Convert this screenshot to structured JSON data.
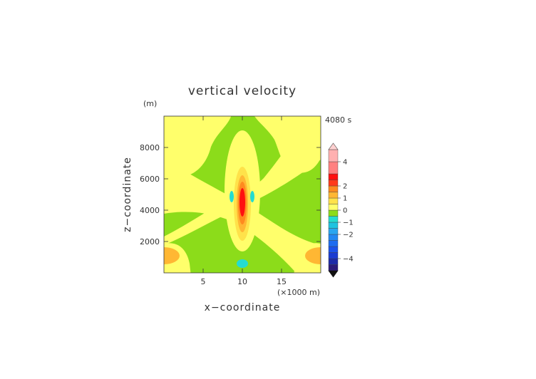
{
  "chart_data": {
    "type": "heatmap",
    "title": "vertical velocity",
    "time_label": "4080 s",
    "xlabel": "x−coordinate",
    "ylabel": "z−coordinate",
    "x_unit_label": "(×1000 m)",
    "y_unit_label": "(m)",
    "xlim": [
      0,
      20
    ],
    "ylim": [
      0,
      10000
    ],
    "x_ticks": [
      5,
      10,
      15
    ],
    "x_tick_labels": [
      "5",
      "10",
      "15"
    ],
    "y_ticks": [
      2000,
      4000,
      6000,
      8000
    ],
    "y_tick_labels": [
      "2000",
      "4000",
      "6000",
      "8000"
    ],
    "colorbar": {
      "levels": [
        -5,
        -4.5,
        -4,
        -3.5,
        -3,
        -2.5,
        -2,
        -1.5,
        -1,
        -0.5,
        0,
        0.5,
        1,
        1.5,
        2,
        2.5,
        3,
        4,
        5
      ],
      "colors": [
        "#2b1a7a",
        "#1d2aa8",
        "#1b3bd1",
        "#1c52ea",
        "#1e6cf0",
        "#2388f2",
        "#2aa6f0",
        "#1fc3e0",
        "#25dcd0",
        "#8cdc1a",
        "#ffff6b",
        "#ffe24a",
        "#ffb733",
        "#ff8a1f",
        "#ff3a1a",
        "#ff1010",
        "#ff8080",
        "#ffb0b0"
      ],
      "tick_values": [
        4,
        2,
        1,
        0,
        -1,
        -2,
        -4
      ],
      "tick_labels": [
        "4",
        "2",
        "1",
        "0",
        "−1",
        "−2",
        "−4"
      ]
    },
    "background_value_range": [
      -0.5,
      0
    ],
    "regions": [
      {
        "level": "0 to 0.5",
        "color": "#ffff6b",
        "desc": "two diagonal bands from (0,3500) to (20,9800) and (0,9800) to (20,3500)"
      },
      {
        "level": "0 to 0.5",
        "color": "#ffff6b",
        "desc": "vertical column around x=10"
      },
      {
        "level": "0.5 to 1",
        "color": "#ffe24a",
        "desc": "core envelope at x=10, z=2500–6500"
      },
      {
        "level": "1 to 1.5",
        "color": "#ffb733",
        "desc": "lobes near left and right boundary at z≈1000"
      },
      {
        "level": "2 to 2.5",
        "color": "#ff3a1a",
        "desc": "updraft core at x=10, z≈4300"
      },
      {
        "level": "-1 to -0.5",
        "color": "#25dcd0",
        "desc": "downdraft spots at x≈8.7 and x≈11.3, z≈5000; x=10, z≈600"
      }
    ]
  }
}
